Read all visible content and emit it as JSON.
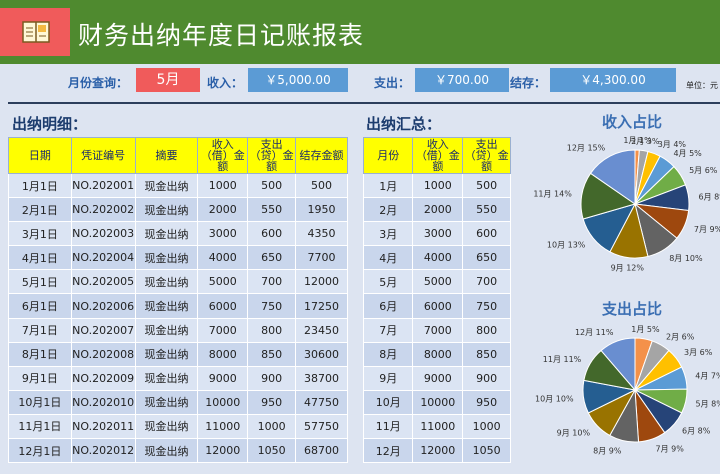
{
  "header": {
    "title": "财务出纳年度日记账报表",
    "logo_icon": "ledger-book-icon"
  },
  "query": {
    "month_label": "月份查询：",
    "month_value": "5月",
    "income_label": "收入：",
    "income_value": "￥5,000.00",
    "expense_label": "支出：",
    "expense_value": "￥700.00",
    "balance_label": "结存：",
    "balance_value": "￥4,300.00",
    "unit_label": "单位：元"
  },
  "detail": {
    "title": "出纳明细：",
    "headers": [
      "日期",
      "凭证编号",
      "摘要",
      "收入（借）金额",
      "支出（贷）金额",
      "结存金额"
    ],
    "rows": [
      [
        "1月1日",
        "NO.202001",
        "现金出纳",
        "1000",
        "500",
        "500"
      ],
      [
        "2月1日",
        "NO.202002",
        "现金出纳",
        "2000",
        "550",
        "1950"
      ],
      [
        "3月1日",
        "NO.202003",
        "现金出纳",
        "3000",
        "600",
        "4350"
      ],
      [
        "4月1日",
        "NO.202004",
        "现金出纳",
        "4000",
        "650",
        "7700"
      ],
      [
        "5月1日",
        "NO.202005",
        "现金出纳",
        "5000",
        "700",
        "12000"
      ],
      [
        "6月1日",
        "NO.202006",
        "现金出纳",
        "6000",
        "750",
        "17250"
      ],
      [
        "7月1日",
        "NO.202007",
        "现金出纳",
        "7000",
        "800",
        "23450"
      ],
      [
        "8月1日",
        "NO.202008",
        "现金出纳",
        "8000",
        "850",
        "30600"
      ],
      [
        "9月1日",
        "NO.202009",
        "现金出纳",
        "9000",
        "900",
        "38700"
      ],
      [
        "10月1日",
        "NO.202010",
        "现金出纳",
        "10000",
        "950",
        "47750"
      ],
      [
        "11月1日",
        "NO.202011",
        "现金出纳",
        "11000",
        "1000",
        "57750"
      ],
      [
        "12月1日",
        "NO.202012",
        "现金出纳",
        "12000",
        "1050",
        "68700"
      ]
    ]
  },
  "summary": {
    "title": "出纳汇总：",
    "headers": [
      "月份",
      "收入（借）金额",
      "支出（贷）金额"
    ],
    "rows": [
      [
        "1月",
        "1000",
        "500"
      ],
      [
        "2月",
        "2000",
        "550"
      ],
      [
        "3月",
        "3000",
        "600"
      ],
      [
        "4月",
        "4000",
        "650"
      ],
      [
        "5月",
        "5000",
        "700"
      ],
      [
        "6月",
        "6000",
        "750"
      ],
      [
        "7月",
        "7000",
        "800"
      ],
      [
        "8月",
        "8000",
        "850"
      ],
      [
        "9月",
        "9000",
        "900"
      ],
      [
        "10月",
        "10000",
        "950"
      ],
      [
        "11月",
        "11000",
        "1000"
      ],
      [
        "12月",
        "12000",
        "1050"
      ]
    ]
  },
  "colors": {
    "header_bg": "#4f8a2f",
    "accent_red": "#f05b5b",
    "accent_blue": "#5b9bd5",
    "table_header": "#ffff00",
    "pie": [
      "#f4914a",
      "#a5a5a5",
      "#ffc000",
      "#5b9bd5",
      "#70ad47",
      "#264478",
      "#9e480e",
      "#636363",
      "#997300",
      "#255e91",
      "#43682b",
      "#698ed0"
    ]
  },
  "chart_data": [
    {
      "type": "pie",
      "title": "收入占比",
      "categories": [
        "1月",
        "2月",
        "3月",
        "4月",
        "5月",
        "6月",
        "7月",
        "8月",
        "9月",
        "10月",
        "11月",
        "12月"
      ],
      "values": [
        1000,
        2000,
        3000,
        4000,
        5000,
        6000,
        7000,
        8000,
        9000,
        10000,
        11000,
        12000
      ],
      "labels": [
        "1月 1%",
        "2月 3%",
        "3月 4%",
        "4月 5%",
        "5月 6%",
        "6月 8%",
        "7月 9%",
        "8月 10%",
        "9月 12%",
        "10月 13%",
        "11月 14%",
        "12月 15%"
      ]
    },
    {
      "type": "pie",
      "title": "支出占比",
      "categories": [
        "1月",
        "2月",
        "3月",
        "4月",
        "5月",
        "6月",
        "7月",
        "8月",
        "9月",
        "10月",
        "11月",
        "12月"
      ],
      "values": [
        500,
        550,
        600,
        650,
        700,
        750,
        800,
        850,
        900,
        950,
        1000,
        1050
      ],
      "labels": [
        "1月 5%",
        "2月 6%",
        "3月 6%",
        "4月 7%",
        "5月 8%",
        "6月 8%",
        "7月 9%",
        "8月 9%",
        "9月 10%",
        "10月 10%",
        "11月 11%",
        "12月 11%"
      ]
    }
  ]
}
